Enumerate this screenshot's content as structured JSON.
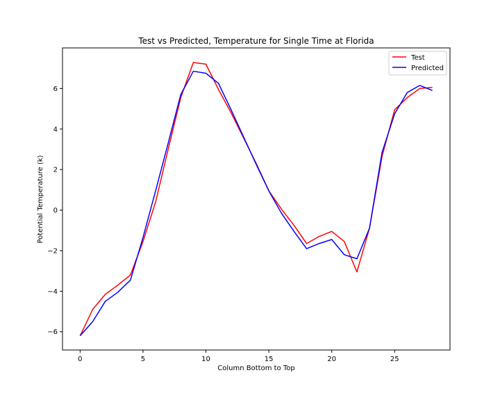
{
  "chart_data": {
    "type": "line",
    "title": "Test vs Predicted, Temperature for Single Time at Florida",
    "xlabel": "Column Bottom to Top",
    "ylabel": "Potential Temperature (k)",
    "xlim": [
      -1.4,
      29.4
    ],
    "ylim": [
      -6.9,
      8.0
    ],
    "xticks": [
      0,
      5,
      10,
      15,
      20,
      25
    ],
    "yticks": [
      -6,
      -4,
      -2,
      0,
      2,
      4,
      6
    ],
    "xtick_labels": [
      "0",
      "5",
      "10",
      "15",
      "20",
      "25"
    ],
    "ytick_labels": [
      "−6",
      "−4",
      "−2",
      "0",
      "2",
      "4",
      "6"
    ],
    "legend_position": "top-right",
    "x": [
      0,
      1,
      2,
      3,
      4,
      5,
      6,
      7,
      8,
      9,
      10,
      11,
      12,
      13,
      14,
      15,
      16,
      17,
      18,
      19,
      20,
      21,
      22,
      23,
      24,
      25,
      26,
      27,
      28
    ],
    "series": [
      {
        "name": "Test",
        "color": "#ff0000",
        "values": [
          -6.2,
          -4.9,
          -4.15,
          -3.7,
          -3.2,
          -1.55,
          0.4,
          3.0,
          5.55,
          7.28,
          7.2,
          5.95,
          4.8,
          3.55,
          2.3,
          0.95,
          0.05,
          -0.75,
          -1.65,
          -1.3,
          -1.05,
          -1.55,
          -3.05,
          -0.9,
          2.65,
          4.95,
          5.55,
          6.0,
          6.05
        ]
      },
      {
        "name": "Predicted",
        "color": "#0000ff",
        "values": [
          -6.2,
          -5.5,
          -4.5,
          -4.05,
          -3.45,
          -1.35,
          0.95,
          3.3,
          5.7,
          6.85,
          6.75,
          6.25,
          4.95,
          3.6,
          2.25,
          0.95,
          -0.15,
          -1.05,
          -1.9,
          -1.65,
          -1.45,
          -2.2,
          -2.4,
          -0.9,
          2.85,
          4.75,
          5.8,
          6.15,
          5.9
        ]
      }
    ]
  }
}
